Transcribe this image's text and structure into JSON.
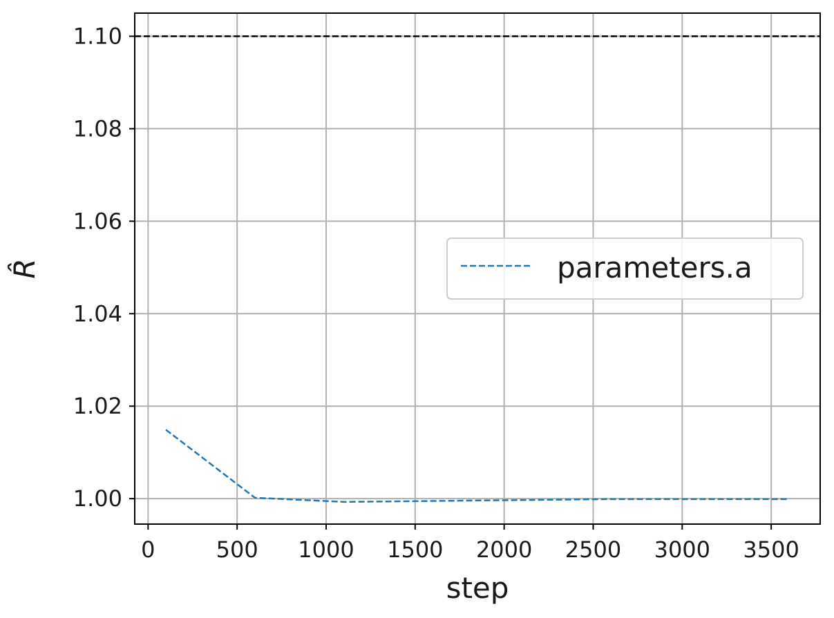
{
  "chart_data": {
    "type": "line",
    "xlabel": "step",
    "ylabel": "R̂",
    "xlim": [
      -75,
      3775
    ],
    "ylim": [
      0.9945,
      1.105
    ],
    "xticks": [
      0,
      500,
      1000,
      1500,
      2000,
      2500,
      3000,
      3500
    ],
    "xtick_labels": [
      "0",
      "500",
      "1000",
      "1500",
      "2000",
      "2500",
      "3000",
      "3500"
    ],
    "yticks": [
      1.0,
      1.02,
      1.04,
      1.06,
      1.08,
      1.1
    ],
    "ytick_labels": [
      "1.00",
      "1.02",
      "1.04",
      "1.06",
      "1.08",
      "1.10"
    ],
    "grid": true,
    "legend_position": "center-right",
    "reference_line": {
      "y": 1.1,
      "style": "dashed",
      "color": "#000000"
    },
    "series": [
      {
        "name": "parameters.a",
        "color": "#1f77b4",
        "style": "dashed",
        "x": [
          100,
          600,
          1100,
          1600,
          2100,
          2600,
          3100,
          3600
        ],
        "y": [
          1.0149,
          1.0002,
          0.9993,
          0.9995,
          0.9997,
          0.9999,
          0.9999,
          0.9999
        ]
      }
    ]
  }
}
